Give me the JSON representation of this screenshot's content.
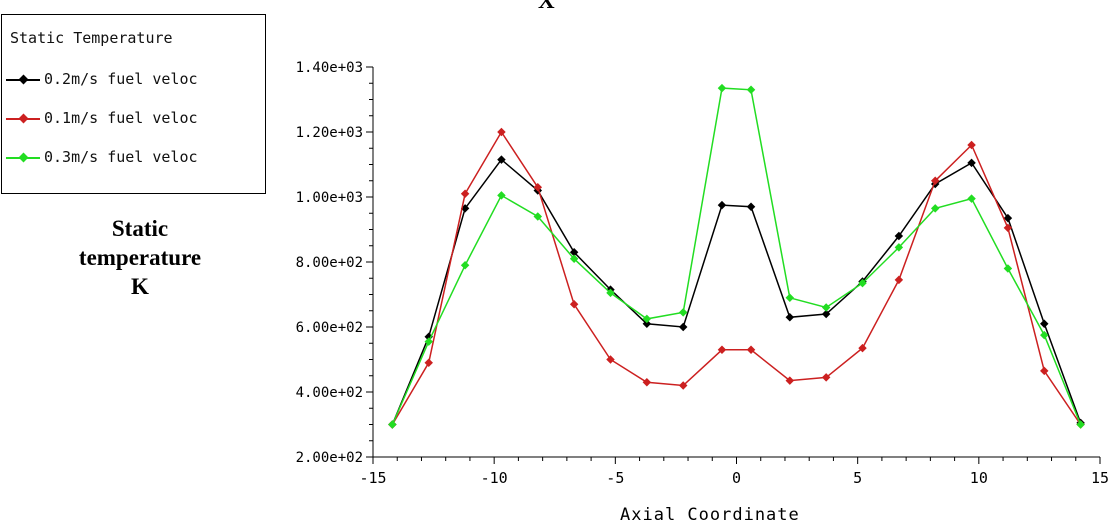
{
  "chart_data": {
    "type": "line",
    "top_label": "X",
    "xlabel": "Axial Coordinate",
    "ylabel_lines": [
      "Static",
      "temperature",
      "K"
    ],
    "legend_title": "Static Temperature",
    "xlim": [
      -15,
      15
    ],
    "ylim": [
      200,
      1400
    ],
    "x_ticks": [
      -15,
      -10,
      -5,
      0,
      5,
      10,
      15
    ],
    "x_tick_labels": [
      "-15",
      "-10",
      "-5",
      "0",
      "5",
      "10",
      "15"
    ],
    "y_ticks": [
      200,
      400,
      600,
      800,
      1000,
      1200,
      1400
    ],
    "y_tick_labels": [
      "2.00e+02",
      "4.00e+02",
      "6.00e+02",
      "8.00e+02",
      "1.00e+03",
      "1.20e+03",
      "1.40e+03"
    ],
    "x": [
      -14.2,
      -12.7,
      -11.2,
      -9.7,
      -8.2,
      -6.7,
      -5.2,
      -3.7,
      -2.2,
      -0.6,
      0.6,
      2.2,
      3.7,
      5.2,
      6.7,
      8.2,
      9.7,
      11.2,
      12.7,
      14.2
    ],
    "series": [
      {
        "name": "0.2m/s fuel velocity",
        "legend_text": "0.2m/s fuel veloc",
        "color": "#000000",
        "values": [
          300,
          570,
          965,
          1115,
          1020,
          830,
          715,
          610,
          600,
          975,
          970,
          630,
          640,
          740,
          880,
          1040,
          1105,
          935,
          610,
          305
        ]
      },
      {
        "name": "0.1m/s fuel velocity",
        "legend_text": "0.1m/s fuel veloc",
        "color": "#cc2020",
        "values": [
          300,
          490,
          1010,
          1200,
          1030,
          670,
          500,
          430,
          420,
          530,
          530,
          435,
          445,
          535,
          745,
          1050,
          1160,
          905,
          465,
          300
        ]
      },
      {
        "name": "0.3m/s fuel velocity",
        "legend_text": "0.3m/s fuel veloc",
        "color": "#22dd22",
        "values": [
          300,
          555,
          790,
          1005,
          940,
          810,
          705,
          625,
          645,
          1335,
          1330,
          690,
          660,
          735,
          845,
          965,
          995,
          780,
          575,
          300
        ]
      }
    ]
  }
}
